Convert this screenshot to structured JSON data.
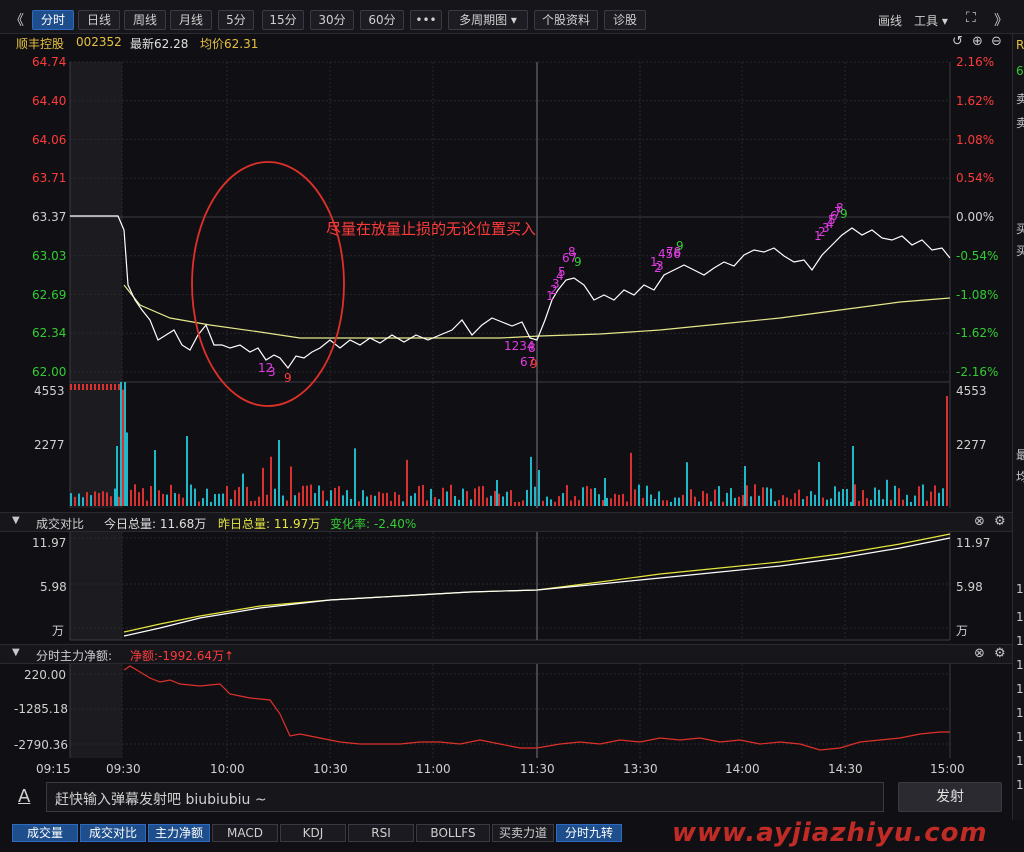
{
  "toolbar": {
    "back_glyph": "《",
    "tabs": [
      "分时",
      "日线",
      "周线",
      "月线",
      "5分",
      "15分",
      "30分",
      "60分",
      "•••",
      "多周期图 ▾",
      "个股资料",
      "诊股"
    ],
    "right_items": [
      "画线",
      "工具 ▾"
    ],
    "expand_glyph": "⛶",
    "forward_glyph": "》"
  },
  "stock": {
    "name": "顺丰控股",
    "code": "002352",
    "latest_label": "最新62.28",
    "avg_label": "均价62.31",
    "annotation": "尽量在放量止损的无论位置买入"
  },
  "price_axis": {
    "left": [
      "64.74",
      "64.40",
      "64.06",
      "63.71",
      "63.37",
      "63.03",
      "62.69",
      "62.34",
      "62.00"
    ],
    "right": [
      "2.16%",
      "1.62%",
      "1.08%",
      "0.54%",
      "0.00%",
      "-0.54%",
      "-1.08%",
      "-1.62%",
      "-2.16%"
    ],
    "left_colors": [
      "#ff3b3b",
      "#ff3b3b",
      "#ff3b3b",
      "#ff3b3b",
      "#d0d0d0",
      "#33cc33",
      "#33cc33",
      "#33cc33",
      "#33cc33"
    ]
  },
  "volume_axis": {
    "labels": [
      "4553",
      "2277"
    ]
  },
  "panel_compare": {
    "title": "成交对比",
    "today_label": "今日总量: 11.68万",
    "yesterday_label": "昨日总量: 11.97万",
    "change_label": "变化率: -2.40%",
    "axis_left": [
      "11.97",
      "5.98",
      "万"
    ],
    "axis_right": [
      "11.97",
      "5.98",
      "万"
    ]
  },
  "panel_flow": {
    "title": "分时主力净额:",
    "net_label": "净额:-1992.64万↑",
    "axis_left": [
      "220.00",
      "-1285.18",
      "-2790.36"
    ]
  },
  "time_axis": [
    "09:15",
    "09:30",
    "10:00",
    "10:30",
    "11:00",
    "11:30",
    "13:30",
    "14:00",
    "14:30",
    "15:00"
  ],
  "danmu": {
    "icon": "A",
    "placeholder": "赶快输入弹幕发射吧 biubiubiu ~",
    "send_label": "发射"
  },
  "bottom_tabs": [
    "成交量",
    "成交对比",
    "主力净额",
    "MACD",
    "KDJ",
    "RSI",
    "BOLLFS",
    "买卖力道",
    "分时九转"
  ],
  "watermark": "www.ayjiazhiyu.com",
  "nine_turn_labels": {
    "group1": [
      "12",
      "3",
      "9"
    ],
    "group2": [
      "1234",
      "8",
      "67",
      "9"
    ],
    "group3": [
      "1",
      "2",
      "3",
      "4",
      "5",
      "67",
      "8",
      "9"
    ],
    "group4": [
      "1",
      "2",
      "3",
      "456",
      "78",
      "9"
    ],
    "group5": [
      "1",
      "2",
      "3",
      "4",
      "5",
      "6",
      "7",
      "8",
      "9"
    ]
  },
  "right_strip": [
    "R",
    "6",
    "卖",
    "卖",
    "买",
    "买",
    "最",
    "均",
    "1",
    "1",
    "1",
    "1",
    "1",
    "1",
    "1",
    "1",
    "1"
  ],
  "colors": {
    "up": "#ff3b3b",
    "down": "#33cc33",
    "price_line": "#ffffff",
    "avg_line": "#e6e68a",
    "flow_line": "#e0302a",
    "volume_up": "#d93030",
    "volume_down": "#1fb8c8",
    "circle": "#e0302a",
    "magenta": "#e03ce0"
  }
}
